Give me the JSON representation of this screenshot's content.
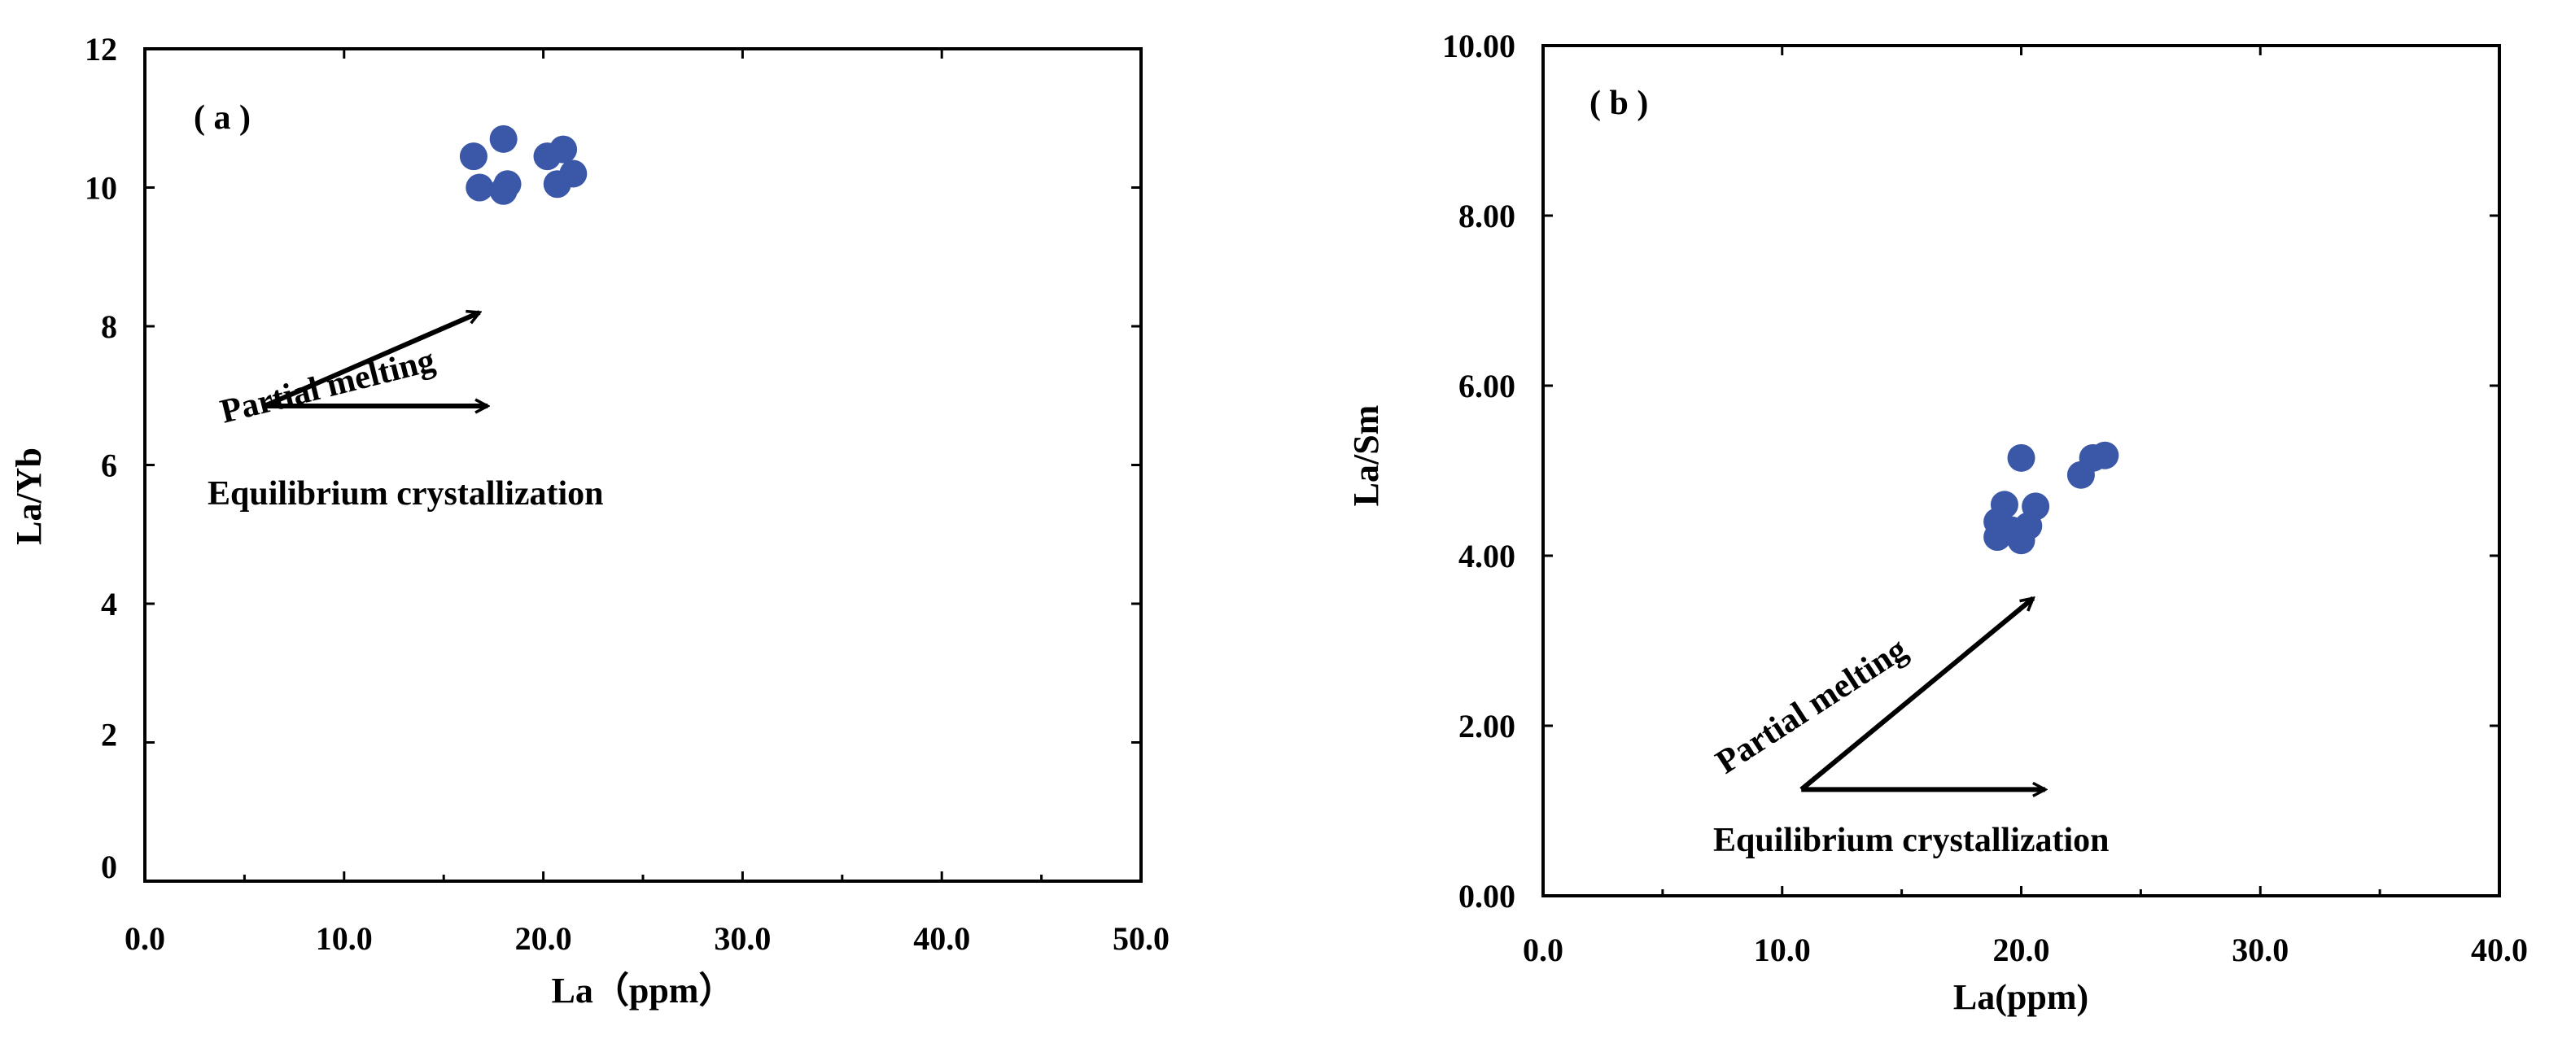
{
  "chart_data": [
    {
      "type": "scatter",
      "panel_label": "( a )",
      "xlabel": "La（ppm）",
      "ylabel": "La/Yb",
      "xlim": [
        0,
        50
      ],
      "ylim": [
        0,
        12
      ],
      "xticks": [
        "0.0",
        "10.0",
        "20.0",
        "30.0",
        "40.0",
        "50.0"
      ],
      "yticks": [
        {
          "value": 0,
          "label": "0"
        },
        {
          "value": 2,
          "label": "2"
        },
        {
          "value": 4,
          "label": "4"
        },
        {
          "value": 6,
          "label": "6"
        },
        {
          "value": 8,
          "label": "8"
        },
        {
          "value": 10,
          "label": "10"
        },
        {
          "value": 12,
          "label": "12"
        }
      ],
      "grid": false,
      "marker_color": "#3a57a8",
      "points": [
        {
          "x": 16.5,
          "y": 10.45
        },
        {
          "x": 18.0,
          "y": 10.7
        },
        {
          "x": 16.8,
          "y": 10.0
        },
        {
          "x": 18.2,
          "y": 10.05
        },
        {
          "x": 18.0,
          "y": 9.95
        },
        {
          "x": 20.2,
          "y": 10.45
        },
        {
          "x": 21.0,
          "y": 10.55
        },
        {
          "x": 21.5,
          "y": 10.2
        },
        {
          "x": 20.7,
          "y": 10.05
        }
      ],
      "annotations": [
        {
          "text": "Partial melting",
          "kind": "arrow",
          "from": [
            6.0,
            6.85
          ],
          "to": [
            16.8,
            8.2
          ]
        },
        {
          "text": "Equilibrium crystallization",
          "kind": "arrow",
          "from": [
            6.0,
            6.85
          ],
          "to": [
            17.2,
            6.85
          ]
        }
      ]
    },
    {
      "type": "scatter",
      "panel_label": "( b )",
      "xlabel": "La(ppm)",
      "ylabel": "La/Sm",
      "xlim": [
        0,
        40
      ],
      "ylim": [
        0,
        10
      ],
      "xticks": [
        "0.0",
        "10.0",
        "20.0",
        "30.0",
        "40.0"
      ],
      "yticks": [
        "0.00",
        "2.00",
        "4.00",
        "6.00",
        "8.00",
        "10.00"
      ],
      "grid": false,
      "marker_color": "#3a57a8",
      "points": [
        {
          "x": 20.0,
          "y": 5.15
        },
        {
          "x": 19.3,
          "y": 4.6
        },
        {
          "x": 19.0,
          "y": 4.4
        },
        {
          "x": 19.0,
          "y": 4.22
        },
        {
          "x": 19.6,
          "y": 4.3
        },
        {
          "x": 20.0,
          "y": 4.18
        },
        {
          "x": 20.3,
          "y": 4.35
        },
        {
          "x": 20.6,
          "y": 4.58
        },
        {
          "x": 22.5,
          "y": 4.95
        },
        {
          "x": 23.0,
          "y": 5.15
        },
        {
          "x": 23.5,
          "y": 5.18
        }
      ],
      "annotations": [
        {
          "text": "Partial melting",
          "kind": "arrow",
          "from": [
            10.8,
            1.25
          ],
          "to": [
            20.5,
            3.5
          ]
        },
        {
          "text": "Equilibrium crystallization",
          "kind": "arrow",
          "from": [
            10.8,
            1.25
          ],
          "to": [
            21.0,
            1.25
          ]
        }
      ]
    }
  ]
}
